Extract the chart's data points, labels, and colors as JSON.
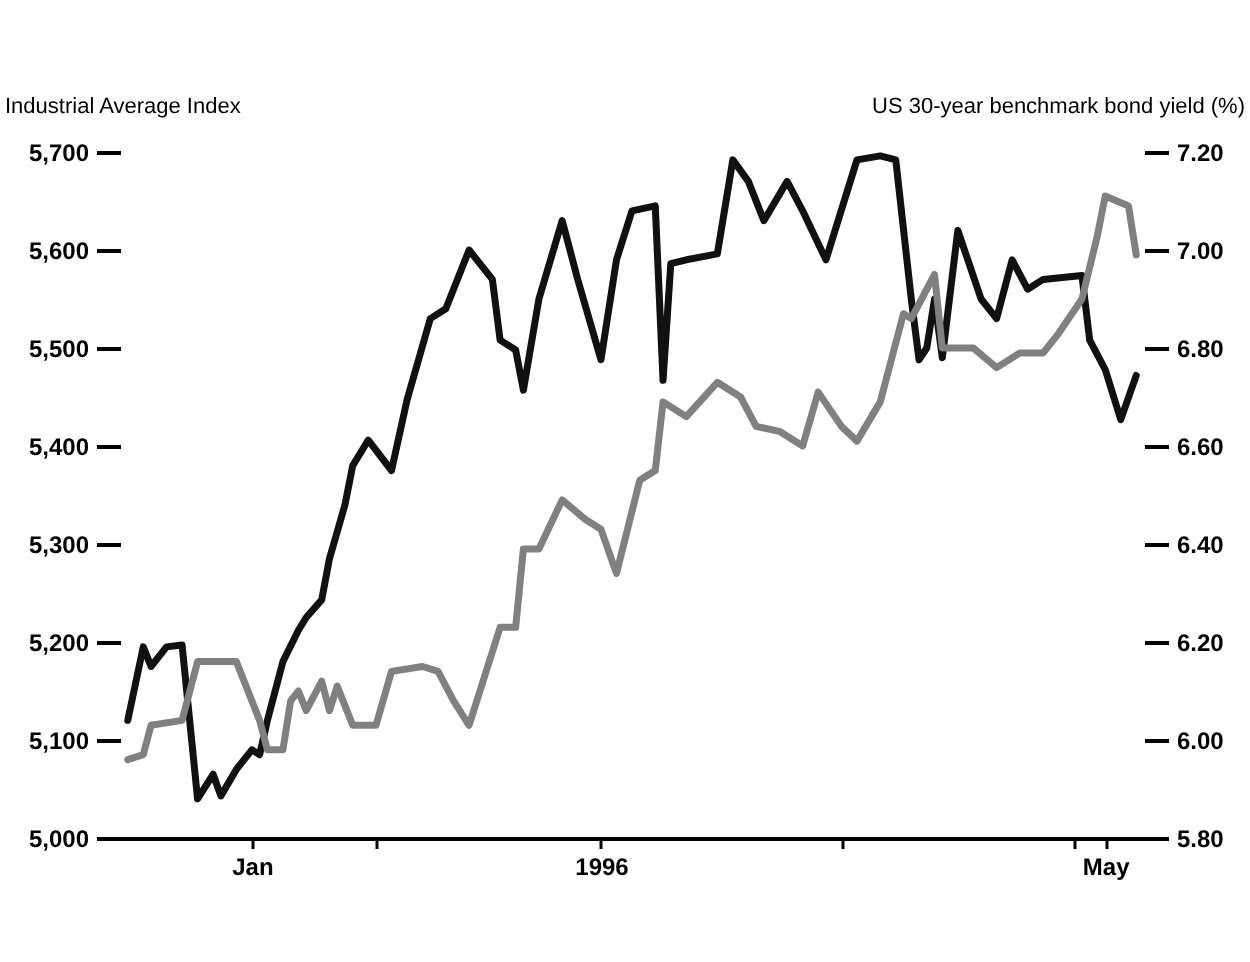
{
  "chart_data": {
    "type": "line",
    "ylabel": "Industrial Average Index",
    "y2label": "US 30-year benchmark bond yield (%)",
    "xlim": [
      "1995-12-30",
      "1996-05-10"
    ],
    "xticks": [
      {
        "value": "1996-01-16",
        "label": "Jan"
      },
      {
        "value": "1996-02-01",
        "label": null
      },
      {
        "value": "1996-03-01",
        "label": "1996"
      },
      {
        "value": "1996-04-01",
        "label": null
      },
      {
        "value": "1996-05-01",
        "label": null
      },
      {
        "value": "1996-05-05",
        "label": "May"
      }
    ],
    "ylim": [
      5000,
      5700
    ],
    "yticks": [
      {
        "value": 5000,
        "label": "5,000"
      },
      {
        "value": 5100,
        "label": "5,100"
      },
      {
        "value": 5200,
        "label": "5,200"
      },
      {
        "value": 5300,
        "label": "5,300"
      },
      {
        "value": 5400,
        "label": "5,400"
      },
      {
        "value": 5500,
        "label": "5,500"
      },
      {
        "value": 5600,
        "label": "5,600"
      },
      {
        "value": 5700,
        "label": "5,700"
      }
    ],
    "y2lim": [
      5.8,
      7.2
    ],
    "y2ticks": [
      {
        "value": 5.8,
        "label": "5.80"
      },
      {
        "value": 6.0,
        "label": "6.00"
      },
      {
        "value": 6.2,
        "label": "6.20"
      },
      {
        "value": 6.4,
        "label": "6.40"
      },
      {
        "value": 6.6,
        "label": "6.60"
      },
      {
        "value": 6.8,
        "label": "6.80"
      },
      {
        "value": 7.0,
        "label": "7.00"
      },
      {
        "value": 7.2,
        "label": "7.20"
      }
    ],
    "series": [
      {
        "color": "#111111",
        "x": [
          "1995-12-31",
          "1996-01-02",
          "1996-01-03",
          "1996-01-05",
          "1996-01-07",
          "1996-01-09",
          "1996-01-11",
          "1996-01-12",
          "1996-01-14",
          "1996-01-16",
          "1996-01-17",
          "1996-01-18",
          "1996-01-20",
          "1996-01-22",
          "1996-01-23",
          "1996-01-25",
          "1996-01-26",
          "1996-01-28",
          "1996-01-29",
          "1996-01-31",
          "1996-02-03",
          "1996-02-05",
          "1996-02-08",
          "1996-02-10",
          "1996-02-13",
          "1996-02-16",
          "1996-02-17",
          "1996-02-19",
          "1996-02-20",
          "1996-02-22",
          "1996-02-25",
          "1996-02-27",
          "1996-03-01",
          "1996-03-03",
          "1996-03-05",
          "1996-03-08",
          "1996-03-09",
          "1996-03-10",
          "1996-03-12",
          "1996-03-16",
          "1996-03-18",
          "1996-03-20",
          "1996-03-22",
          "1996-03-25",
          "1996-03-27",
          "1996-03-30",
          "1996-04-03",
          "1996-04-06",
          "1996-04-08",
          "1996-04-10",
          "1996-04-11",
          "1996-04-12",
          "1996-04-13",
          "1996-04-14",
          "1996-04-16",
          "1996-04-19",
          "1996-04-21",
          "1996-04-23",
          "1996-04-25",
          "1996-04-27",
          "1996-05-02",
          "1996-05-03",
          "1996-05-05",
          "1996-05-07",
          "1996-05-09"
        ],
        "values": [
          5120,
          5195,
          5175,
          5195,
          5197,
          5040,
          5065,
          5043,
          5070,
          5090,
          5085,
          5120,
          5180,
          5212,
          5225,
          5243,
          5285,
          5340,
          5380,
          5406,
          5375,
          5447,
          5530,
          5540,
          5600,
          5570,
          5508,
          5498,
          5457,
          5550,
          5630,
          5570,
          5488,
          5590,
          5640,
          5645,
          5467,
          5586,
          5590,
          5596,
          5692,
          5670,
          5630,
          5670,
          5640,
          5590,
          5692,
          5696,
          5692,
          5550,
          5488,
          5500,
          5550,
          5490,
          5620,
          5550,
          5530,
          5590,
          5560,
          5570,
          5574,
          5508,
          5478,
          5427,
          5472
        ]
      },
      {
        "color": "#808080",
        "axis": "y2",
        "x": [
          "1995-12-31",
          "1996-01-02",
          "1996-01-03",
          "1996-01-07",
          "1996-01-09",
          "1996-01-14",
          "1996-01-17",
          "1996-01-18",
          "1996-01-20",
          "1996-01-21",
          "1996-01-22",
          "1996-01-23",
          "1996-01-25",
          "1996-01-26",
          "1996-01-27",
          "1996-01-29",
          "1996-02-01",
          "1996-02-03",
          "1996-02-07",
          "1996-02-09",
          "1996-02-11",
          "1996-02-13",
          "1996-02-14",
          "1996-02-17",
          "1996-02-19",
          "1996-02-20",
          "1996-02-22",
          "1996-02-25",
          "1996-02-28",
          "1996-03-01",
          "1996-03-03",
          "1996-03-06",
          "1996-03-08",
          "1996-03-09",
          "1996-03-12",
          "1996-03-16",
          "1996-03-19",
          "1996-03-21",
          "1996-03-24",
          "1996-03-27",
          "1996-03-29",
          "1996-04-01",
          "1996-04-03",
          "1996-04-06",
          "1996-04-09",
          "1996-04-10",
          "1996-04-13",
          "1996-04-14",
          "1996-04-18",
          "1996-04-21",
          "1996-04-24",
          "1996-04-27",
          "1996-04-29",
          "1996-05-02",
          "1996-05-04",
          "1996-05-05",
          "1996-05-08",
          "1996-05-09"
        ],
        "values": [
          5.96,
          5.97,
          6.03,
          6.04,
          6.16,
          6.16,
          6.04,
          5.98,
          5.98,
          6.08,
          6.1,
          6.06,
          6.12,
          6.06,
          6.11,
          6.03,
          6.03,
          6.14,
          6.15,
          6.14,
          6.08,
          6.03,
          6.08,
          6.23,
          6.23,
          6.39,
          6.39,
          6.49,
          6.45,
          6.43,
          6.34,
          6.53,
          6.55,
          6.69,
          6.66,
          6.73,
          6.7,
          6.64,
          6.63,
          6.6,
          6.71,
          6.64,
          6.61,
          6.69,
          6.87,
          6.86,
          6.95,
          6.8,
          6.8,
          6.76,
          6.79,
          6.79,
          6.83,
          6.9,
          7.03,
          7.11,
          7.09,
          6.99
        ]
      }
    ]
  }
}
